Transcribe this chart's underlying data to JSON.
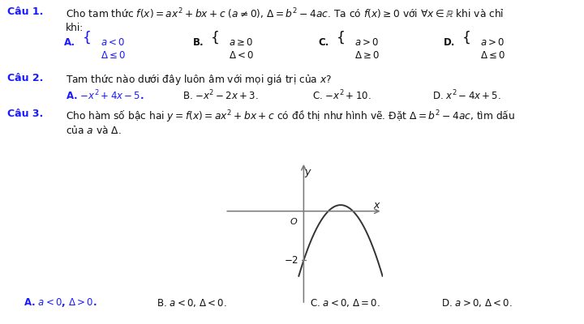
{
  "bg_color": "#ffffff",
  "blue": "#1a1aff",
  "black": "#111111",
  "fig_width": 7.2,
  "fig_height": 4.0,
  "dpi": 100,
  "cau1_label": "Câu 1.",
  "cau1_text": "Cho tam thức $f(x)=ax^2+bx+c$ $(a\\neq 0)$, $\\Delta=b^2-4ac$. Ta có $f(x)\\geq 0$ với $\\forall x\\in\\mathbb{R}$ khi và chỉ",
  "cau1_text2": "khi:",
  "cau2_label": "Câu 2.",
  "cau2_text": "Tam thức nào dưới đây luôn âm với mọi giá trị của $x$?",
  "cau2_A": "A. $-x^2+4x-5$.",
  "cau2_B": "B. $-x^2-2x+3$.",
  "cau2_C": "C. $-x^2+10$.",
  "cau2_D": "D. $x^2-4x+5$.",
  "cau3_label": "Câu 3.",
  "cau3_text": "Cho hàm số bậc hai $y=f(x)=ax^2+bx+c$ có đồ thị như hình vẽ. Đặt $\\Delta=b^2-4ac$, tìm dấu",
  "cau3_text2": "của $a$ và $\\Delta$.",
  "cau3_A": "A. $a<0$, $\\Delta>0$.",
  "cau3_B": "B. $a<0$, $\\Delta<0$.",
  "cau3_C": "C. $a<0$, $\\Delta=0$.",
  "cau3_D": "D. $a>0$, $\\Delta<0$.",
  "graph_xlim": [
    -3.2,
    3.2
  ],
  "graph_ylim": [
    -3.8,
    2.0
  ]
}
